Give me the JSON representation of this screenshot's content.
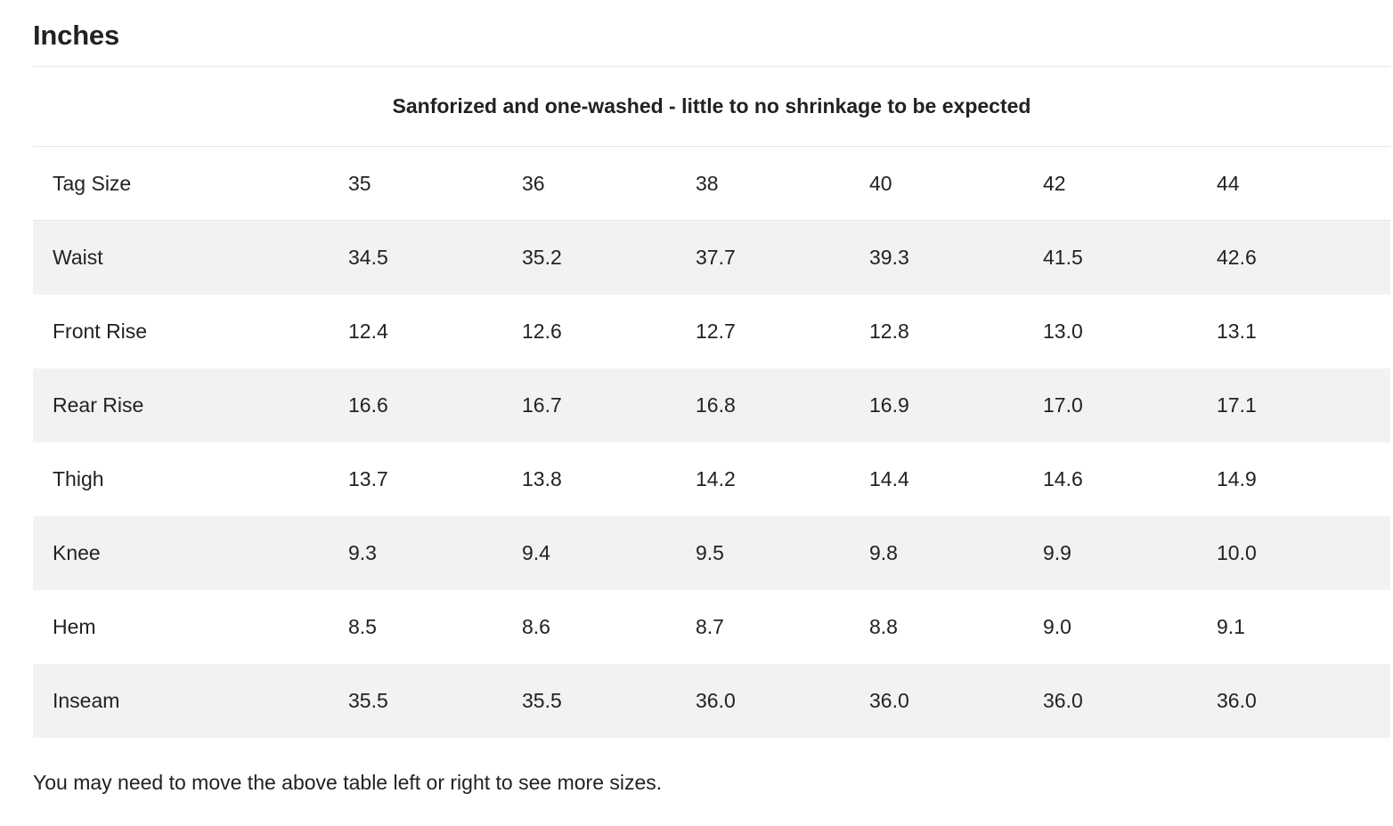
{
  "heading": "Inches",
  "caption": "Sanforized and one-washed - little to no shrinkage to be expected",
  "table": {
    "header": {
      "label": "Tag Size",
      "values": [
        "35",
        "36",
        "38",
        "40",
        "42",
        "44"
      ]
    },
    "rows": [
      {
        "label": "Waist",
        "values": [
          "34.5",
          "35.2",
          "37.7",
          "39.3",
          "41.5",
          "42.6"
        ]
      },
      {
        "label": "Front Rise",
        "values": [
          "12.4",
          "12.6",
          "12.7",
          "12.8",
          "13.0",
          "13.1"
        ]
      },
      {
        "label": "Rear Rise",
        "values": [
          "16.6",
          "16.7",
          "16.8",
          "16.9",
          "17.0",
          "17.1"
        ]
      },
      {
        "label": "Thigh",
        "values": [
          "13.7",
          "13.8",
          "14.2",
          "14.4",
          "14.6",
          "14.9"
        ]
      },
      {
        "label": "Knee",
        "values": [
          "9.3",
          "9.4",
          "9.5",
          "9.8",
          "9.9",
          "10.0"
        ]
      },
      {
        "label": "Hem",
        "values": [
          "8.5",
          "8.6",
          "8.7",
          "8.8",
          "9.0",
          "9.1"
        ]
      },
      {
        "label": "Inseam",
        "values": [
          "35.5",
          "35.5",
          "36.0",
          "36.0",
          "36.0",
          "36.0"
        ]
      }
    ]
  },
  "footnote": "You may need to move the above table left or right to see more sizes.",
  "colors": {
    "text": "#222222",
    "stripe": "#f2f2f2",
    "divider": "#e6e6e6"
  }
}
